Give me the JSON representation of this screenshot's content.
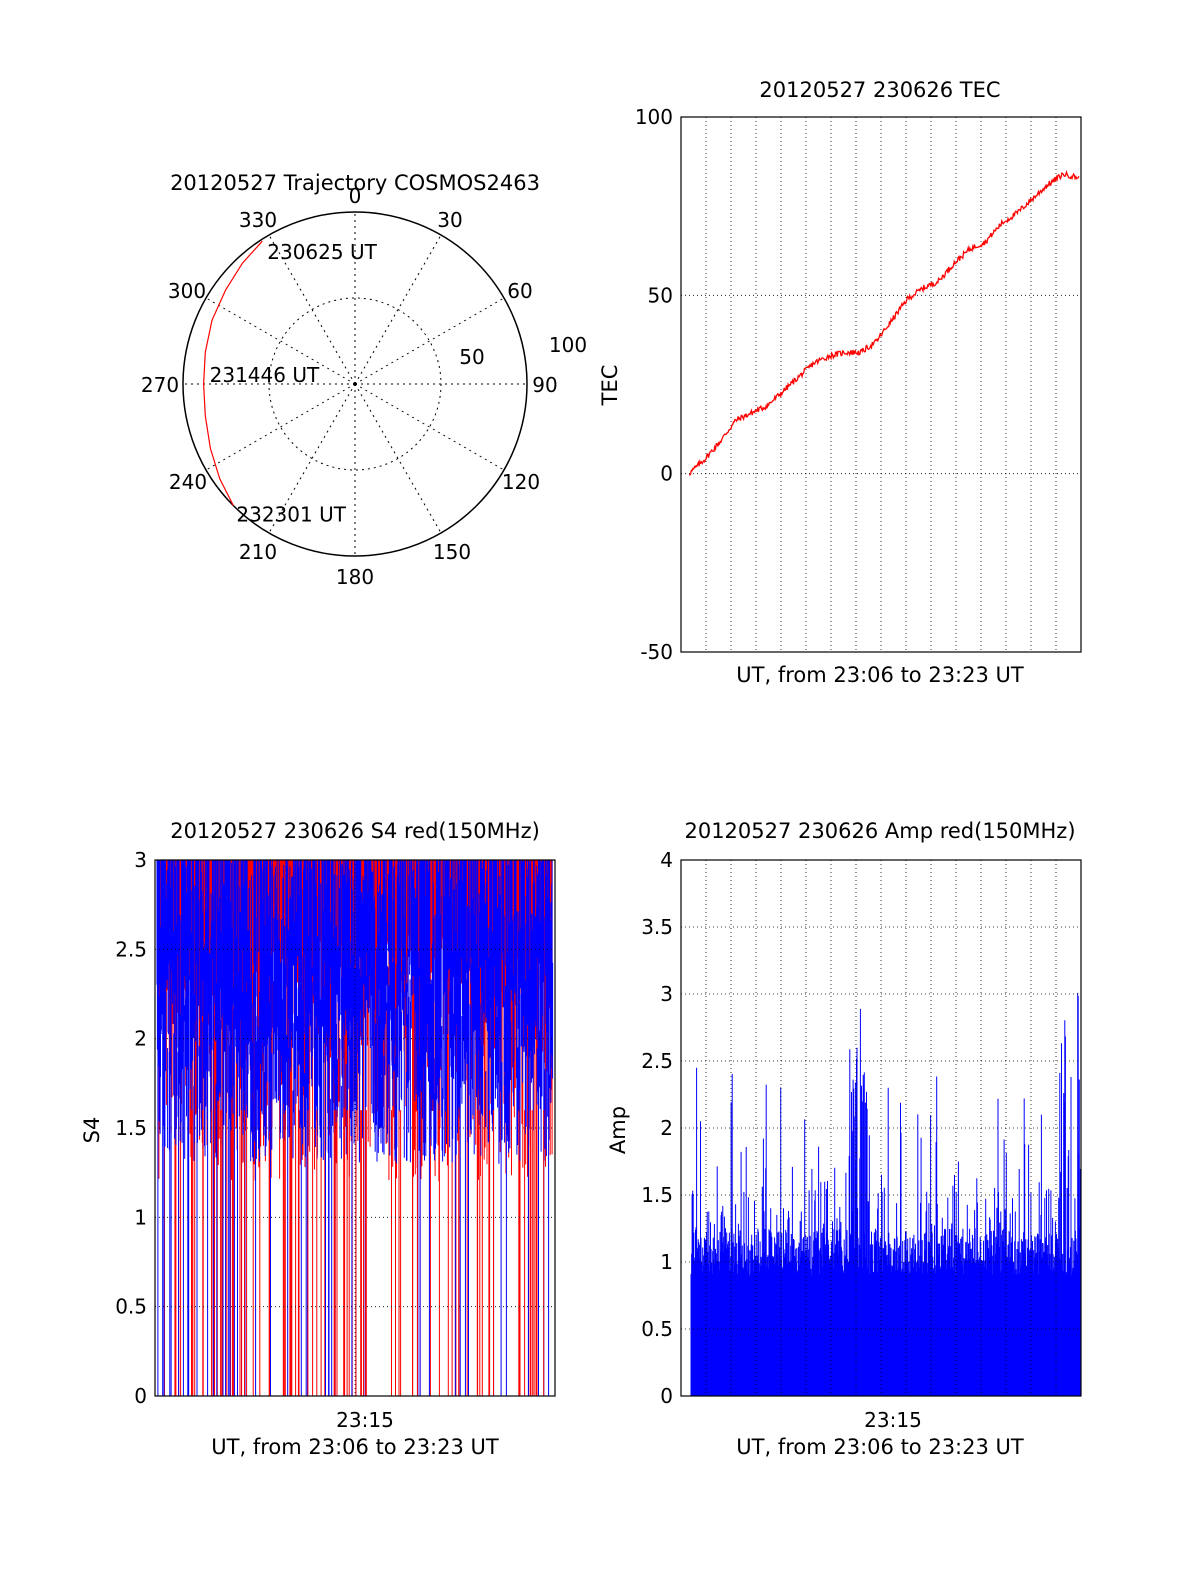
{
  "colors": {
    "red": "#ff0000",
    "blue": "#0000ff",
    "axis": "#000000",
    "grid": "#000000"
  },
  "chart_data": [
    {
      "type": "polar",
      "title": "20120527 Trajectory COSMOS2463",
      "azimuth_labels": [
        "0",
        "30",
        "60",
        "90",
        "120",
        "150",
        "180",
        "210",
        "240",
        "270",
        "300",
        "330"
      ],
      "elevation_labels": [
        "50",
        "100"
      ],
      "series": [
        {
          "color": "red",
          "points": [
            {
              "az": 327,
              "r": 99
            },
            {
              "az": 317,
              "r": 96
            },
            {
              "az": 306,
              "r": 93
            },
            {
              "az": 294,
              "r": 91
            },
            {
              "az": 282,
              "r": 89
            },
            {
              "az": 270,
              "r": 88
            },
            {
              "az": 258,
              "r": 89
            },
            {
              "az": 246,
              "r": 92
            },
            {
              "az": 235,
              "r": 96
            },
            {
              "az": 225,
              "r": 100
            }
          ]
        }
      ],
      "annotations": [
        {
          "text": "230625 UT",
          "az": 327,
          "r": 99
        },
        {
          "text": "231446 UT",
          "az": 270,
          "r": 88
        },
        {
          "text": "232301 UT",
          "az": 225,
          "r": 100
        }
      ]
    },
    {
      "type": "line",
      "title": "20120527 230626 TEC",
      "xlabel": "UT, from 23:06 to 23:23 UT",
      "ylabel": "TEC",
      "ylim": [
        -50,
        100
      ],
      "yticks": [
        "100",
        "50",
        "0",
        "-50"
      ],
      "grid": true,
      "series": [
        {
          "color": "red",
          "x": [
            0,
            0.04,
            0.08,
            0.12,
            0.16,
            0.2,
            0.24,
            0.28,
            0.32,
            0.36,
            0.4,
            0.44,
            0.48,
            0.52,
            0.56,
            0.6,
            0.64,
            0.68,
            0.72,
            0.76,
            0.8,
            0.84,
            0.88,
            0.92,
            0.96,
            1.0
          ],
          "values": [
            0,
            4,
            9,
            15,
            17,
            19,
            23,
            27,
            31,
            33,
            34,
            34,
            37,
            43,
            49,
            52,
            54,
            59,
            63,
            65,
            70,
            73,
            77,
            81,
            84,
            83
          ]
        }
      ]
    },
    {
      "type": "line",
      "title": "20120527 230626 S4 red(150MHz)",
      "xlabel": "UT, from 23:06 to 23:23 UT",
      "ylabel": "S4",
      "ylim": [
        0,
        3
      ],
      "yticks": [
        "3",
        "2.5",
        "2",
        "1.5",
        "1",
        "0.5",
        "0"
      ],
      "xtick": "23:15",
      "grid": true,
      "series": [
        {
          "color": "red"
        },
        {
          "color": "blue"
        }
      ]
    },
    {
      "type": "bar",
      "title": "20120527 230626 Amp red(150MHz)",
      "xlabel": "UT, from 23:06 to 23:23 UT",
      "ylabel": "Amp",
      "ylim": [
        0,
        4
      ],
      "yticks": [
        "4",
        "3.5",
        "3",
        "2.5",
        "2",
        "1.5",
        "1",
        "0.5",
        "0"
      ],
      "xtick": "23:15",
      "grid": true,
      "series": [
        {
          "color": "blue"
        }
      ]
    }
  ]
}
